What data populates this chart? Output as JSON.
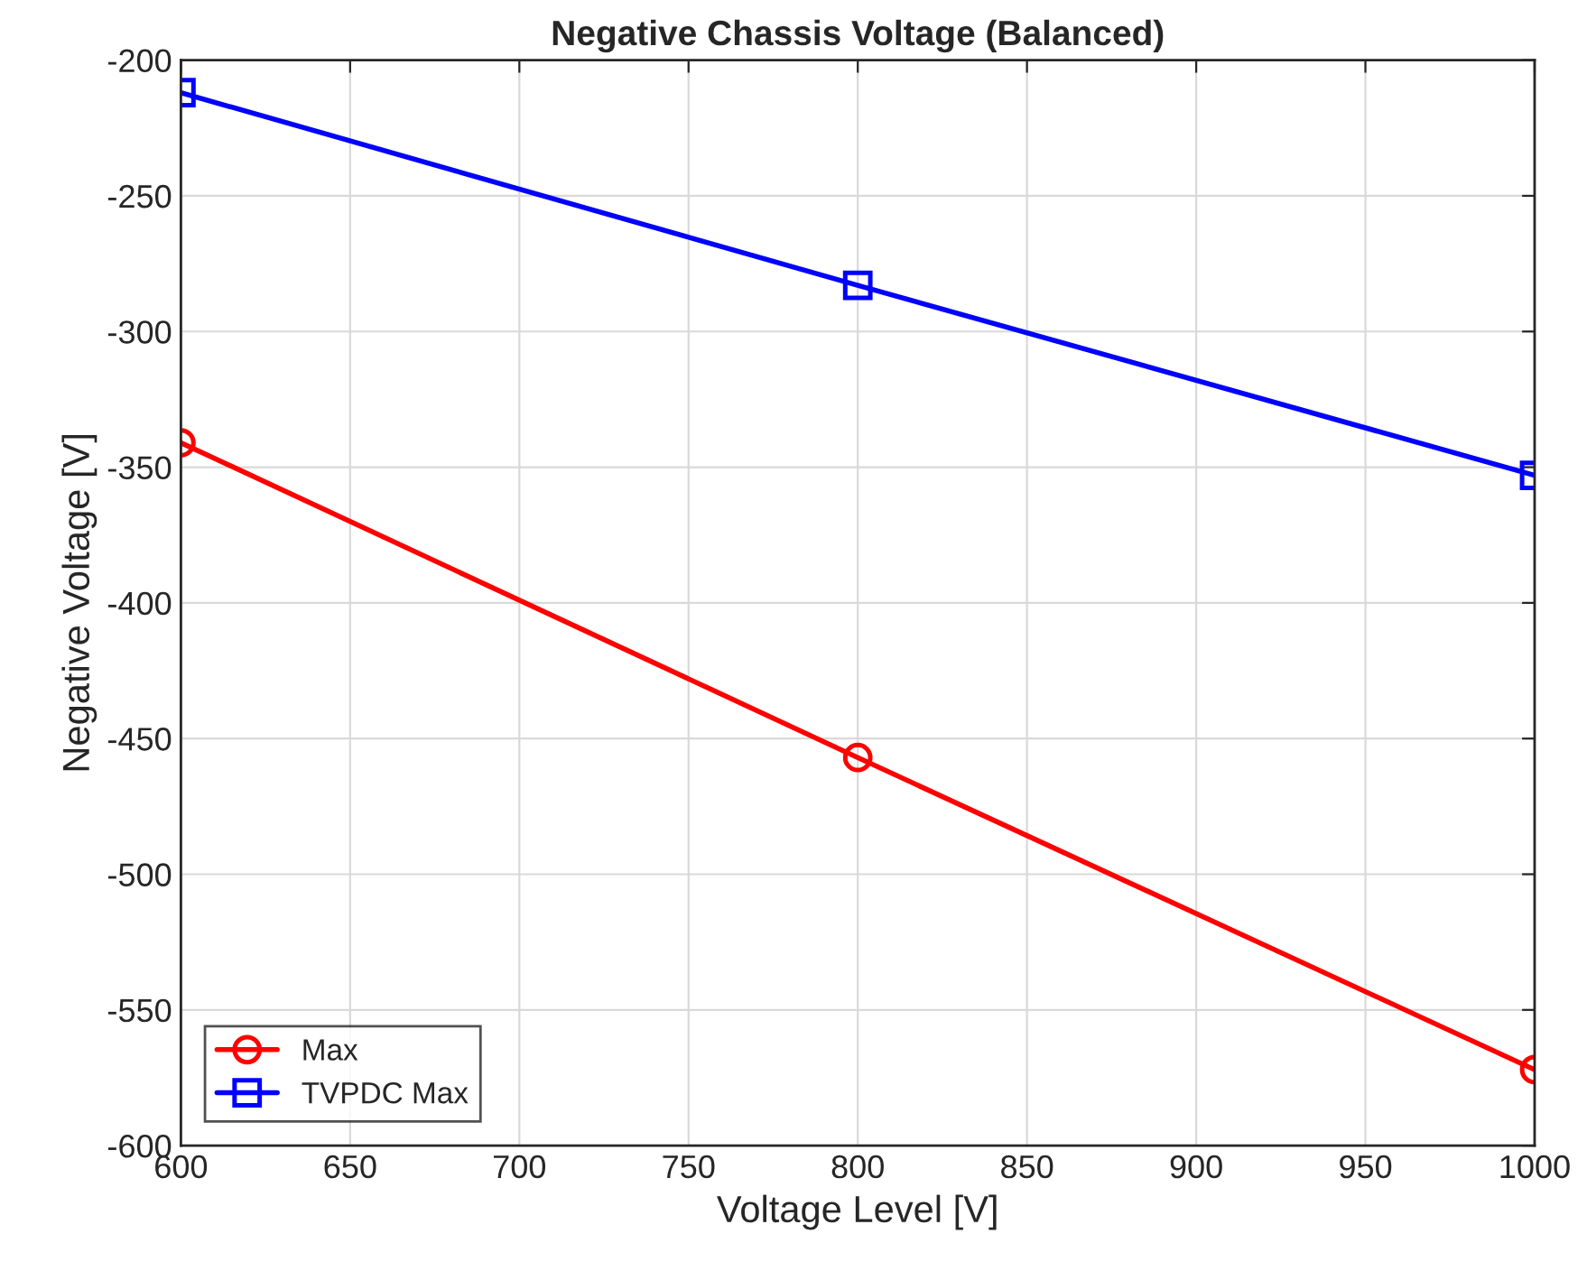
{
  "chart_data": {
    "type": "line",
    "title": "Negative Chassis Voltage (Balanced)",
    "xlabel": "Voltage Level [V]",
    "ylabel": "Negative Voltage [V]",
    "x": [
      600,
      800,
      1000
    ],
    "series": [
      {
        "name": "Max",
        "color": "#ff0000",
        "marker": "circle",
        "values": [
          -341,
          -457,
          -572
        ]
      },
      {
        "name": "TVPDC Max",
        "color": "#0000ff",
        "marker": "square",
        "values": [
          -212,
          -283,
          -353
        ]
      }
    ],
    "xlim": [
      600,
      1000
    ],
    "xticks": [
      600,
      650,
      700,
      750,
      800,
      850,
      900,
      950,
      1000
    ],
    "ylim": [
      -600,
      -200
    ],
    "yticks": [
      -600,
      -550,
      -500,
      -450,
      -400,
      -350,
      -300,
      -250,
      -200
    ],
    "grid": true,
    "legend": "bottom left",
    "line_style": "solid"
  }
}
